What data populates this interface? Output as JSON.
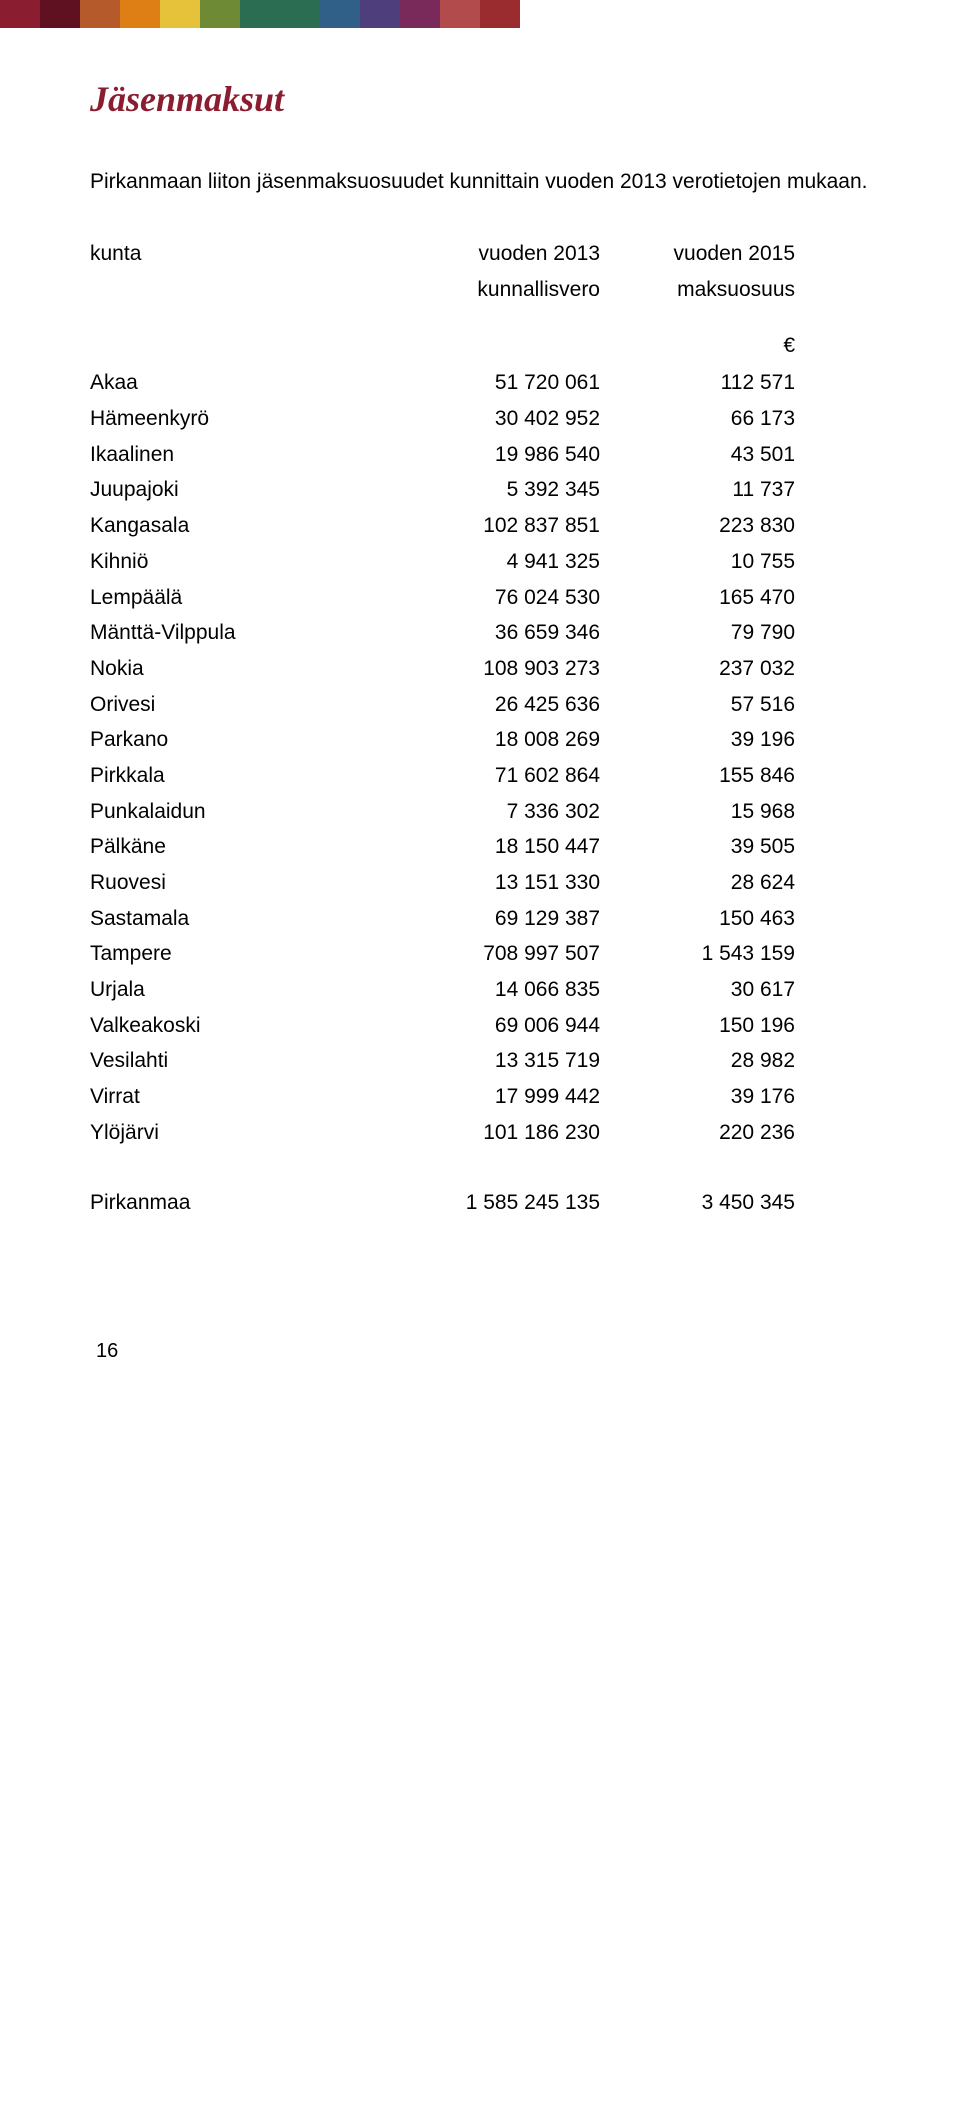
{
  "colorbar": {
    "colors": [
      "#8a1e30",
      "#5f1021",
      "#b55a2a",
      "#dd7f14",
      "#e6c23a",
      "#6f8a35",
      "#2b6d52",
      "#2b6d52",
      "#305f88",
      "#4e3f7c",
      "#7a2a5a",
      "#b14b4c",
      "#9a2b2e"
    ]
  },
  "title": "Jäsenmaksut",
  "intro": "Pirkanmaan liiton jäsenmaksuosuudet kunnittain vuoden 2013 verotietojen mukaan.",
  "headers": {
    "col_name": "kunta",
    "col_v1_line1": "vuoden 2013",
    "col_v1_line2": "kunnallisvero",
    "col_v2_line1": "vuoden 2015",
    "col_v2_line2": "maksuosuus"
  },
  "currency": "€",
  "rows": [
    {
      "name": "Akaa",
      "v1": "51 720 061",
      "v2": "112 571"
    },
    {
      "name": "Hämeenkyrö",
      "v1": "30 402 952",
      "v2": "66 173"
    },
    {
      "name": "Ikaalinen",
      "v1": "19 986 540",
      "v2": "43 501"
    },
    {
      "name": "Juupajoki",
      "v1": "5 392 345",
      "v2": "11 737"
    },
    {
      "name": "Kangasala",
      "v1": "102 837 851",
      "v2": "223 830"
    },
    {
      "name": "Kihniö",
      "v1": "4 941 325",
      "v2": "10 755"
    },
    {
      "name": "Lempäälä",
      "v1": "76 024 530",
      "v2": "165 470"
    },
    {
      "name": "Mänttä-Vilppula",
      "v1": "36 659 346",
      "v2": "79 790"
    },
    {
      "name": "Nokia",
      "v1": "108 903 273",
      "v2": "237 032"
    },
    {
      "name": "Orivesi",
      "v1": "26 425 636",
      "v2": "57 516"
    },
    {
      "name": "Parkano",
      "v1": "18 008 269",
      "v2": "39 196"
    },
    {
      "name": "Pirkkala",
      "v1": "71 602 864",
      "v2": "155 846"
    },
    {
      "name": "Punkalaidun",
      "v1": "7 336 302",
      "v2": "15 968"
    },
    {
      "name": "Pälkäne",
      "v1": "18 150 447",
      "v2": "39 505"
    },
    {
      "name": "Ruovesi",
      "v1": "13 151 330",
      "v2": "28 624"
    },
    {
      "name": "Sastamala",
      "v1": "69 129 387",
      "v2": "150 463"
    },
    {
      "name": "Tampere",
      "v1": "708 997 507",
      "v2": "1 543 159"
    },
    {
      "name": "Urjala",
      "v1": "14 066 835",
      "v2": "30 617"
    },
    {
      "name": "Valkeakoski",
      "v1": "69 006 944",
      "v2": "150 196"
    },
    {
      "name": "Vesilahti",
      "v1": "13 315 719",
      "v2": "28 982"
    },
    {
      "name": "Virrat",
      "v1": "17 999 442",
      "v2": "39 176"
    },
    {
      "name": "Ylöjärvi",
      "v1": "101 186 230",
      "v2": "220 236"
    }
  ],
  "total": {
    "name": "Pirkanmaa",
    "v1": "1 585 245 135",
    "v2": "3 450 345"
  },
  "page_number": "16"
}
